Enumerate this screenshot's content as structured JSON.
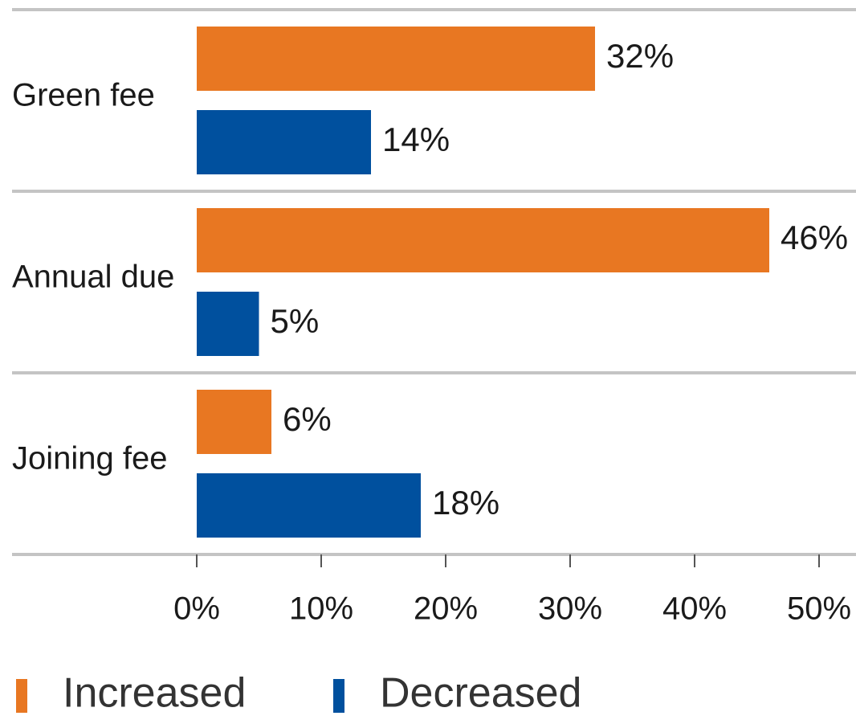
{
  "chart_data": {
    "type": "bar",
    "orientation": "horizontal",
    "categories": [
      "Green fee",
      "Annual due",
      "Joining fee"
    ],
    "series": [
      {
        "name": "Increased",
        "color": "#e87722",
        "values": [
          32,
          46,
          6
        ],
        "value_labels": [
          "32%",
          "46%",
          "6%"
        ]
      },
      {
        "name": "Decreased",
        "color": "#00509e",
        "values": [
          14,
          5,
          18
        ],
        "value_labels": [
          "14%",
          "5%",
          "18%"
        ]
      }
    ],
    "xlim": [
      0,
      50
    ],
    "xticks": [
      {
        "value": 0,
        "label": "0%"
      },
      {
        "value": 10,
        "label": "10%"
      },
      {
        "value": 20,
        "label": "20%"
      },
      {
        "value": 30,
        "label": "30%"
      },
      {
        "value": 40,
        "label": "40%"
      },
      {
        "value": 50,
        "label": "50%"
      }
    ]
  }
}
